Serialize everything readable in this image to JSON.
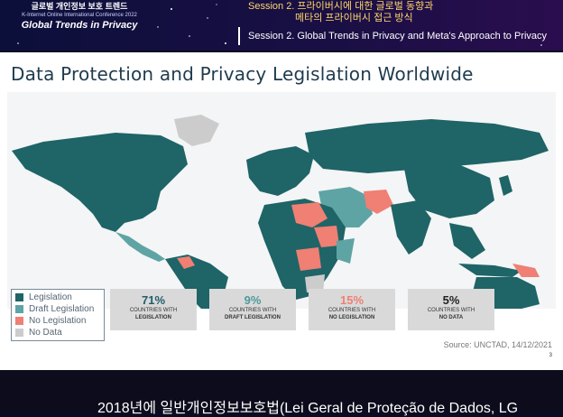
{
  "banner": {
    "brand_korean": "글로벌 개인정보 보호 트렌드",
    "brand_english": "K-Internet Online International Conference 2022",
    "brand_title": "Global Trends in Privacy",
    "session_korean_line1": "Session 2. 프라이버시에 대한 글로벌 동향과",
    "session_korean_line2": "메타의 프라이버시 접근 방식",
    "session_english": "Session 2. Global Trends in Privacy and Meta's Approach to Privacy"
  },
  "slide": {
    "title": "Data Protection and Privacy Legislation Worldwide",
    "legend": [
      {
        "label": "Legislation",
        "color": "#1f6467"
      },
      {
        "label": "Draft Legislation",
        "color": "#5fa4a4"
      },
      {
        "label": "No Legislation",
        "color": "#f07f74"
      },
      {
        "label": "No Data",
        "color": "#cccccc"
      }
    ],
    "stats": [
      {
        "pct": "71%",
        "line1": "COUNTRIES WITH",
        "line2": "LEGISLATION",
        "color": "#1f5e6b"
      },
      {
        "pct": "9%",
        "line1": "COUNTRIES WITH",
        "line2": "DRAFT LEGISLATION",
        "color": "#4f9a9a"
      },
      {
        "pct": "15%",
        "line1": "COUNTRIES WITH",
        "line2": "NO LEGISLATION",
        "color": "#f07f74"
      },
      {
        "pct": "5%",
        "line1": "COUNTRIES WITH",
        "line2": "NO DATA",
        "color": "#222222"
      }
    ],
    "source": "Source: UNCTAD, 14/12/2021",
    "page_number": "3"
  },
  "subtitle": {
    "text": "2018년에 일반개인정보보호법(Lei Geral de Proteção de Dados, LG"
  }
}
